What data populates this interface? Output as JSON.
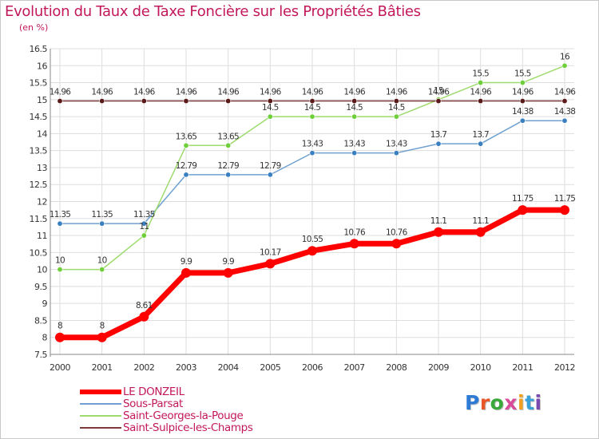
{
  "title": "Evolution du Taux de Taxe Foncière sur les Propriétés Bâties",
  "subtitle": "(en %)",
  "brand": {
    "logo_text": "Proxiti",
    "letter_colors": [
      "#2e7bd6",
      "#e8572a",
      "#3aa83a",
      "#d84a9a",
      "#f0a020",
      "#3aa0d8",
      "#7a4ab0"
    ]
  },
  "colors": {
    "grid": "#dddddd",
    "axis": "#888888",
    "tick_text": "#333333",
    "label_text": "#333333"
  },
  "chart_data": {
    "type": "line",
    "title": "Evolution du Taux de Taxe Foncière sur les Propriétés Bâties",
    "ylabel": "(en %)",
    "xlabel": "",
    "x": [
      "2000",
      "2001",
      "2002",
      "2003",
      "2004",
      "2005",
      "2006",
      "2007",
      "2008",
      "2009",
      "2010",
      "2011",
      "2012"
    ],
    "ylim": [
      7.5,
      16.5
    ],
    "yticks": [
      "7.5",
      "8",
      "8.5",
      "9",
      "9.5",
      "10",
      "10.5",
      "11",
      "11.5",
      "12",
      "12.5",
      "13",
      "13.5",
      "14",
      "14.5",
      "15",
      "15.5",
      "16",
      "16.5"
    ],
    "grid": true,
    "legend_position": "bottom-left",
    "series": [
      {
        "name": "LE DONZEIL",
        "color": "#ff0000",
        "values": [
          8,
          8,
          8.61,
          9.9,
          9.9,
          10.17,
          10.55,
          10.76,
          10.76,
          11.1,
          11.1,
          11.75,
          11.75
        ],
        "labels": [
          "8",
          "8",
          "8.61",
          "9.9",
          "9.9",
          "10.17",
          "10.55",
          "10.76",
          "10.76",
          "11.1",
          "11.1",
          "11.75",
          "11.75"
        ]
      },
      {
        "name": "Sous-Parsat",
        "color": "#6fa0cf",
        "marker": "#3a7fc0",
        "values": [
          11.35,
          11.35,
          11.35,
          12.79,
          12.79,
          12.79,
          13.43,
          13.43,
          13.43,
          13.7,
          13.7,
          14.38,
          14.38
        ],
        "labels": [
          "11.35",
          "11.35",
          "11.35",
          "12.79",
          "12.79",
          "12.79",
          "13.43",
          "13.43",
          "13.43",
          "13.7",
          "13.7",
          "14.38",
          "14.38"
        ]
      },
      {
        "name": "Saint-Georges-la-Pouge",
        "color": "#9edb6e",
        "marker": "#6fcf3a",
        "values": [
          10,
          10,
          11,
          13.65,
          13.65,
          14.5,
          14.5,
          14.5,
          14.5,
          15,
          15.5,
          15.5,
          16
        ],
        "labels": [
          "10",
          "10",
          "11",
          "13.65",
          "13.65",
          "14.5",
          "14.5",
          "14.5",
          "14.5",
          "15",
          "15.5",
          "15.5",
          "16"
        ]
      },
      {
        "name": "Saint-Sulpice-les-Champs",
        "color": "#7a3a3a",
        "marker": "#5a1a1a",
        "values": [
          14.96,
          14.96,
          14.96,
          14.96,
          14.96,
          14.96,
          14.96,
          14.96,
          14.96,
          14.96,
          14.96,
          14.96,
          14.96
        ],
        "labels": [
          "14.96",
          "14.96",
          "14.96",
          "14.96",
          "14.96",
          "14.96",
          "14.96",
          "14.96",
          "14.96",
          "14.96",
          "14.96",
          "14.96",
          "14.96"
        ]
      }
    ]
  }
}
